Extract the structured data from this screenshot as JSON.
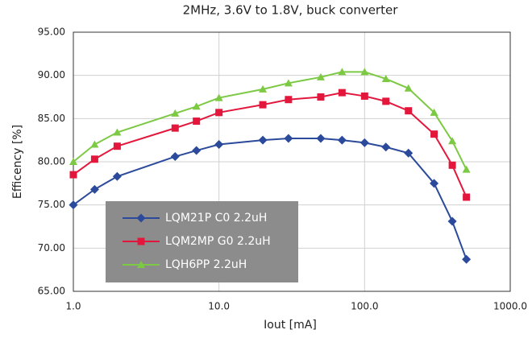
{
  "chart_data": {
    "type": "line",
    "title": "2MHz, 3.6V to 1.8V, buck converter",
    "x_label": "Iout [mA]",
    "y_label": "Efficency [%]",
    "x_log": true,
    "grid": true,
    "x": [
      1,
      1.4,
      2,
      5,
      7,
      10,
      20,
      30,
      50,
      70,
      100,
      140,
      200,
      300,
      400,
      500
    ],
    "series": [
      {
        "name": "LQM21P C0 2.2uH",
        "color": "#2b4a9b",
        "marker": "diamond",
        "values": [
          75.0,
          76.8,
          78.3,
          80.6,
          81.3,
          82.0,
          82.5,
          82.7,
          82.7,
          82.5,
          82.2,
          81.7,
          81.0,
          77.5,
          73.1,
          68.7
        ]
      },
      {
        "name": "LQM2MP G0 2.2uH",
        "color": "#e3173c",
        "marker": "square",
        "values": [
          78.5,
          80.3,
          81.8,
          83.9,
          84.7,
          85.7,
          86.6,
          87.2,
          87.5,
          88.0,
          87.6,
          87.0,
          85.9,
          83.2,
          79.6,
          75.9
        ]
      },
      {
        "name": "LQH6PP 2.2uH",
        "color": "#7cc943",
        "marker": "triangle",
        "values": [
          80.0,
          82.0,
          83.4,
          85.6,
          86.4,
          87.4,
          88.4,
          89.1,
          89.8,
          90.4,
          90.4,
          89.6,
          88.5,
          85.7,
          82.4,
          79.1
        ]
      }
    ],
    "xlim": [
      1,
      1000
    ],
    "xticks": [
      {
        "value": 1,
        "label": "1.0"
      },
      {
        "value": 10,
        "label": "10.0"
      },
      {
        "value": 100,
        "label": "100.0"
      },
      {
        "value": 1000,
        "label": "1000.0"
      }
    ],
    "ylim": [
      65,
      95
    ],
    "yticks": [
      {
        "value": 65,
        "label": "65.00"
      },
      {
        "value": 70,
        "label": "70.00"
      },
      {
        "value": 75,
        "label": "75.00"
      },
      {
        "value": 80,
        "label": "80.00"
      },
      {
        "value": 85,
        "label": "85.00"
      },
      {
        "value": 90,
        "label": "90.00"
      },
      {
        "value": 95,
        "label": "95.00"
      }
    ]
  }
}
